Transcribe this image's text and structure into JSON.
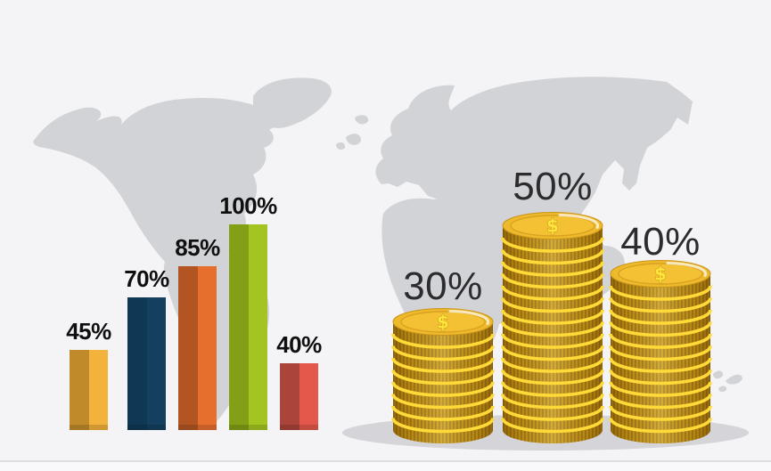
{
  "colors": {
    "page_bg": "#f4f4f6",
    "map": "#d2d3d7",
    "shadow": "#d4d4d9",
    "floor_line": "#dddde1",
    "floor_bg": "#f9f9fb",
    "bar_label": "#0f0f10",
    "coin_label": "#2c2c2f",
    "coin_rim": "#ffd938",
    "coin_ridge_dark": "#9e7410",
    "coin_ridge_light": "#c59417",
    "coin_face": "#efb92c",
    "coin_face_inner": "#f3c133",
    "coin_face_ring": "#d8a120",
    "coin_face_edge": "#c9951b",
    "dollar": "#ffe63c",
    "dollar_outline": "#bd8d14"
  },
  "chart_data": [
    {
      "type": "bar",
      "title": "",
      "categories": [
        "bar-1",
        "bar-2",
        "bar-3",
        "bar-4",
        "bar-5"
      ],
      "values": [
        45,
        70,
        85,
        100,
        40
      ],
      "labels": [
        "45%",
        "70%",
        "85%",
        "100%",
        "40%"
      ],
      "bar_colors": [
        {
          "dark": "#c08a2a",
          "light": "#f3b23c"
        },
        {
          "dark": "#0e3854",
          "light": "#143f5e"
        },
        {
          "dark": "#b25522",
          "light": "#e76f2e"
        },
        {
          "dark": "#82a015",
          "light": "#a4c521"
        },
        {
          "dark": "#ab443a",
          "light": "#e4584b"
        }
      ],
      "ylim": [
        0,
        100
      ],
      "grid": false,
      "legend": "none"
    },
    {
      "type": "bar",
      "subtype": "coin-stacks",
      "categories": [
        "stack-1",
        "stack-2",
        "stack-3"
      ],
      "values": [
        30,
        50,
        40
      ],
      "labels": [
        "30%",
        "50%",
        "40%"
      ],
      "coin_counts": [
        9,
        17,
        13
      ],
      "coin_symbol": "$",
      "grid": false,
      "legend": "none"
    }
  ]
}
